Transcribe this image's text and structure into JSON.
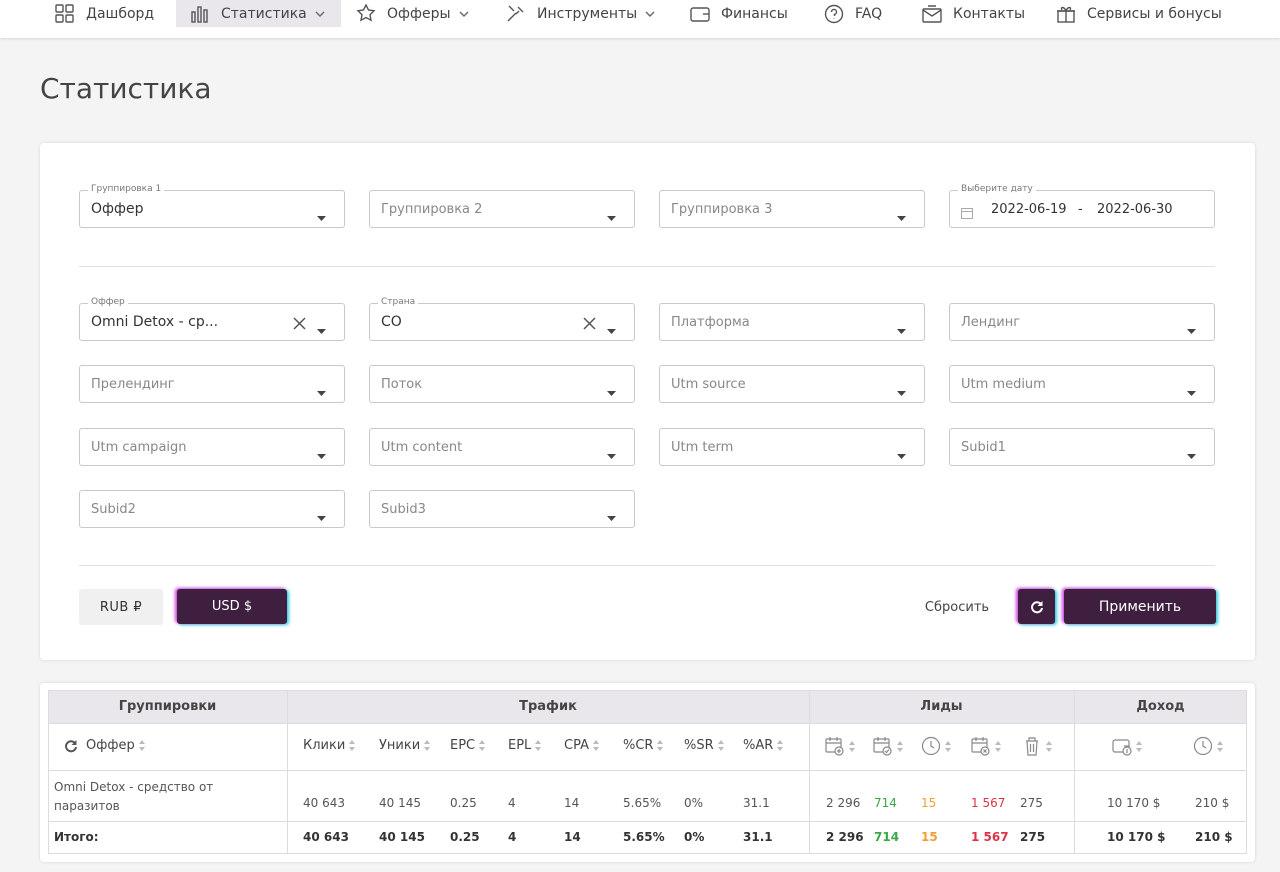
{
  "nav": {
    "items": [
      "Дашборд",
      "Статистика",
      "Офферы",
      "Инструменты",
      "Финансы",
      "FAQ",
      "Контакты",
      "Сервисы и бонусы"
    ]
  },
  "page_title": "Статистика",
  "grouping": [
    {
      "label": "Группировка 1",
      "value": "Оффер"
    },
    {
      "placeholder": "Группировка 2"
    },
    {
      "placeholder": "Группировка 3"
    }
  ],
  "date": {
    "label": "Выберите дату",
    "from": "2022-06-19",
    "separator": "-",
    "to": "2022-06-30"
  },
  "filters": [
    {
      "label": "Оффер",
      "value": "Omni Detox - ср..."
    },
    {
      "label": "Страна",
      "value": "CO"
    },
    {
      "placeholder": "Платформа"
    },
    {
      "placeholder": "Лендинг"
    },
    {
      "placeholder": "Прелендинг"
    },
    {
      "placeholder": "Поток"
    },
    {
      "placeholder": "Utm source"
    },
    {
      "placeholder": "Utm medium"
    },
    {
      "placeholder": "Utm campaign"
    },
    {
      "placeholder": "Utm content"
    },
    {
      "placeholder": "Utm term"
    },
    {
      "placeholder": "Subid1"
    },
    {
      "placeholder": "Subid2"
    },
    {
      "placeholder": "Subid3"
    }
  ],
  "currency": [
    "RUB ₽",
    "USD $"
  ],
  "actions": {
    "reset": "Сбросить",
    "apply": "Применить"
  },
  "table": {
    "groups": [
      "Группировки",
      "Трафик",
      "Лиды",
      "Доход"
    ],
    "columns": [
      "Оффер",
      "Клики",
      "Уники",
      "EPC",
      "EPL",
      "CPA",
      "%CR",
      "%SR",
      "%AR"
    ],
    "rows": [
      [
        "Omni Detox - средство от паразитов",
        "40 643",
        "40 145",
        "0.25",
        "4",
        "14",
        "5.65%",
        "0%",
        "31.1",
        "2 296",
        "714",
        "15",
        "1 567",
        "275",
        "10 170 $",
        "210 $"
      ],
      [
        "Итого:",
        "40 643",
        "40 145",
        "0.25",
        "4",
        "14",
        "5.65%",
        "0%",
        "31.1",
        "2 296",
        "714",
        "15",
        "1 567",
        "275",
        "10 170 $",
        "210 $"
      ]
    ]
  }
}
